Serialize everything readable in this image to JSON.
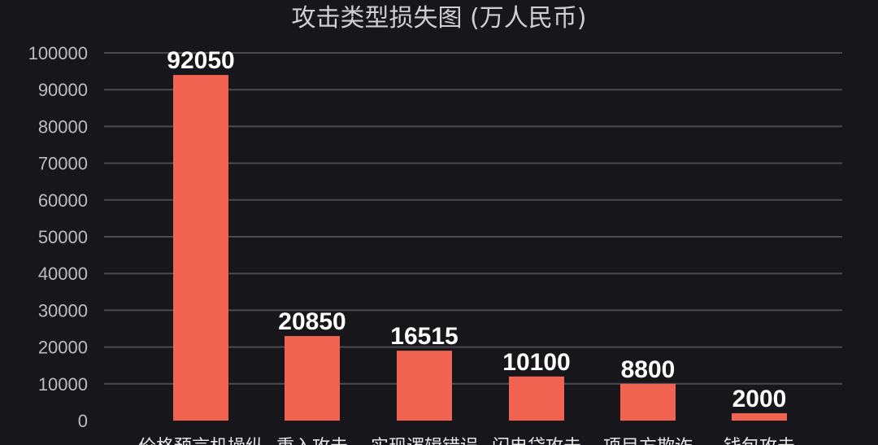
{
  "chart_data": {
    "type": "bar",
    "title": "攻击类型损失图 (万人民币)",
    "categories": [
      "价格预言机操纵",
      "重入攻击",
      "实现逻辑错误",
      "闪电贷攻击",
      "项目方欺诈",
      "钱包攻击"
    ],
    "values": [
      92050,
      20850,
      16515,
      10100,
      8800,
      2000
    ],
    "bar_heights_visual": [
      94000,
      23000,
      19000,
      12000,
      10000,
      2000
    ],
    "ylim": [
      0,
      100000
    ],
    "yticks": [
      "0",
      "10000",
      "20000",
      "30000",
      "40000",
      "50000",
      "60000",
      "70000",
      "80000",
      "90000",
      "100000"
    ],
    "bar_color": "#f26452",
    "grid": true,
    "legend": "none",
    "xlabel": "",
    "ylabel": ""
  }
}
